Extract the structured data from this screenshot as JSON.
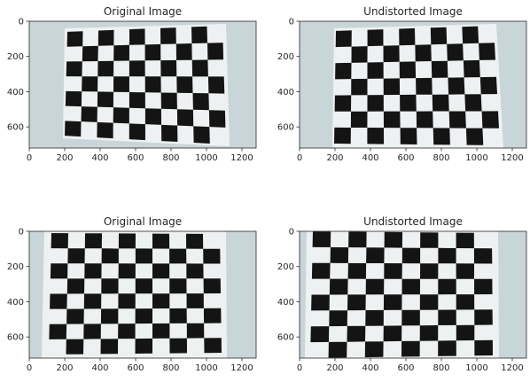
{
  "figure": {
    "background_color": "#ffffff",
    "axes_color": "#262626",
    "wall_color": "#c9d6d9",
    "paper_color": "#eef1f2",
    "square_color": "#141414",
    "panels": [
      {
        "title": "Original Image",
        "x_ticks": [
          "0",
          "200",
          "400",
          "600",
          "800",
          "1000",
          "1200"
        ],
        "y_ticks": [
          "0",
          "200",
          "400",
          "600"
        ],
        "image": "chessboard-photo-1-original"
      },
      {
        "title": "Undistorted Image",
        "x_ticks": [
          "0",
          "200",
          "400",
          "600",
          "800",
          "1000",
          "1200"
        ],
        "y_ticks": [
          "0",
          "200",
          "400",
          "600"
        ],
        "image": "chessboard-photo-1-undistorted"
      },
      {
        "title": "Original Image",
        "x_ticks": [
          "0",
          "200",
          "400",
          "600",
          "800",
          "1000",
          "1200"
        ],
        "y_ticks": [
          "0",
          "200",
          "400",
          "600"
        ],
        "image": "chessboard-photo-2-original"
      },
      {
        "title": "Undistorted Image",
        "x_ticks": [
          "0",
          "200",
          "400",
          "600",
          "800",
          "1000",
          "1200"
        ],
        "y_ticks": [
          "0",
          "200",
          "400",
          "600"
        ],
        "image": "chessboard-photo-2-undistorted"
      }
    ]
  }
}
